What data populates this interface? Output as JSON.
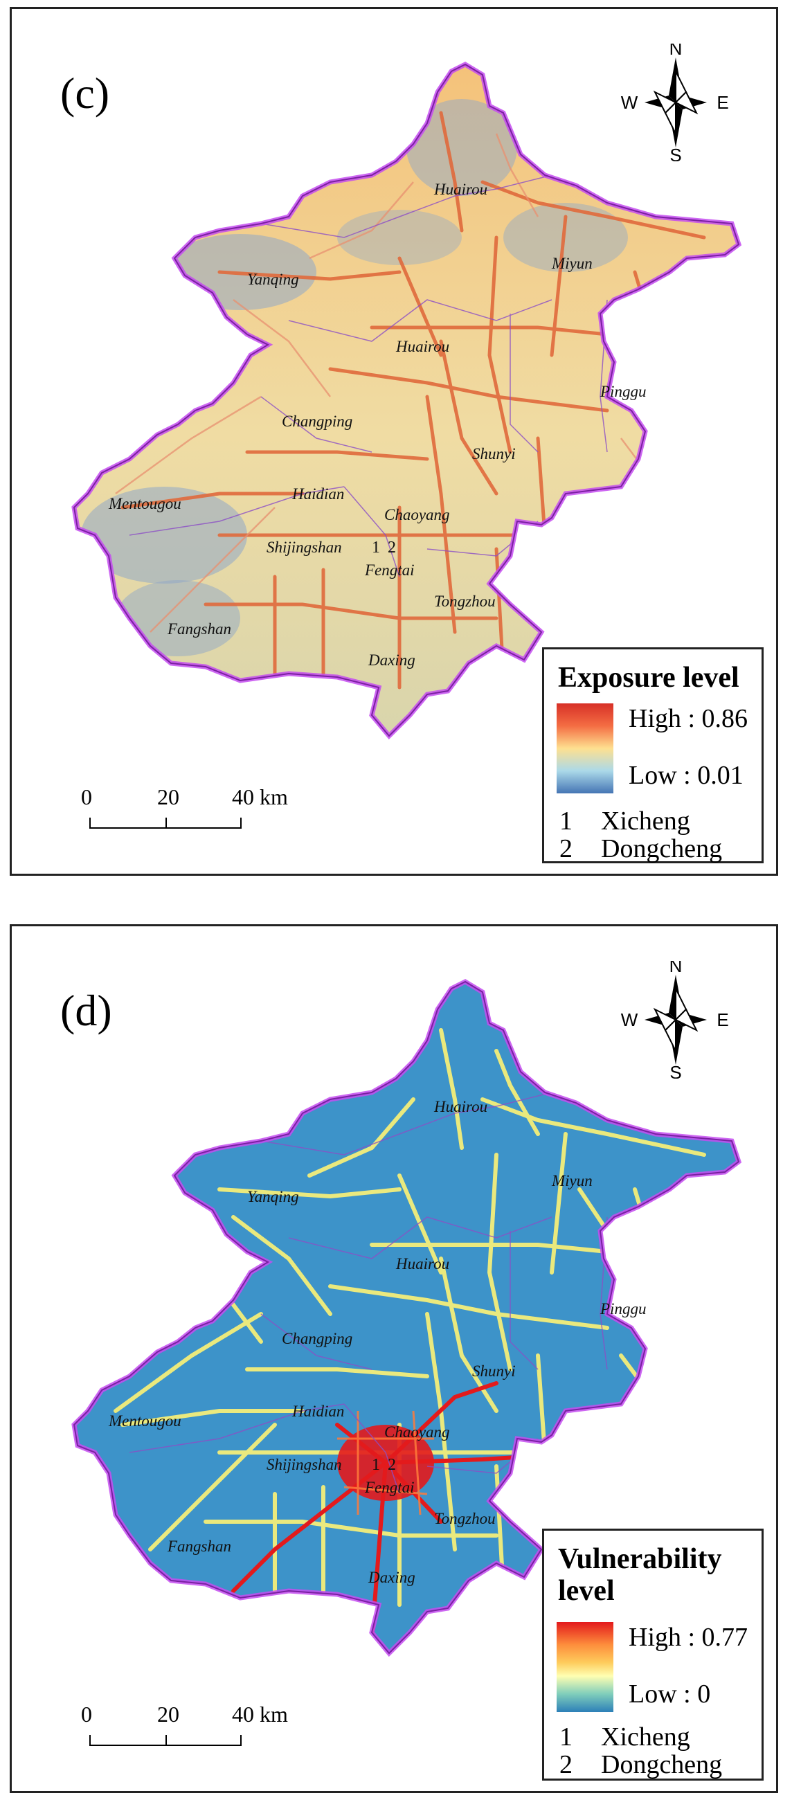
{
  "panels": [
    {
      "letter": "(c)",
      "legend_title": "Exposure level",
      "legend_high": "High : 0.86",
      "legend_low": "Low : 0.01",
      "ramp_colors": [
        "#d73027",
        "#f46d43",
        "#fdae61",
        "#fee090",
        "#abd9e9",
        "#4575b4"
      ],
      "fill_color": "#e8d9a6",
      "road_color": "#e06a3c",
      "outline_color": "#c44cf0",
      "keys": [
        {
          "num": "1",
          "name": "Xicheng"
        },
        {
          "num": "2",
          "name": "Dongcheng"
        }
      ],
      "scale": {
        "zero": "0",
        "mid": "20",
        "end": "40 km"
      },
      "districts": [
        "Huairou",
        "Yanqing",
        "Miyun",
        "Huairou",
        "Changping",
        "Pinggu",
        "Shunyi",
        "Haidian",
        "Mentougou",
        "Chaoyang",
        "Shijingshan",
        "Fengtai",
        "Tongzhou",
        "Fangshan",
        "Daxing"
      ],
      "numbers": [
        "1",
        "2"
      ]
    },
    {
      "letter": "(d)",
      "legend_title": "Vulnerability level",
      "legend_high": "High : 0.77",
      "legend_low": "Low : 0",
      "ramp_colors": [
        "#e31a1c",
        "#fd8d3c",
        "#fecc5c",
        "#ffffb2",
        "#7fcdbb",
        "#2c7fb8"
      ],
      "fill_color": "#3d93c9",
      "road_color": "#f4ee7a",
      "outline_color": "#c44cf0",
      "keys": [
        {
          "num": "1",
          "name": "Xicheng"
        },
        {
          "num": "2",
          "name": "Dongcheng"
        }
      ],
      "scale": {
        "zero": "0",
        "mid": "20",
        "end": "40 km"
      },
      "districts": [
        "Huairou",
        "Yanqing",
        "Miyun",
        "Huairou",
        "Changping",
        "Pinggu",
        "Shunyi",
        "Haidian",
        "Mentougou",
        "Chaoyang",
        "Shijingshan",
        "Fengtai",
        "Tongzhou",
        "Fangshan",
        "Daxing"
      ],
      "numbers": [
        "1",
        "2"
      ]
    }
  ],
  "compass": {
    "n": "N",
    "s": "S",
    "e": "E",
    "w": "W"
  }
}
